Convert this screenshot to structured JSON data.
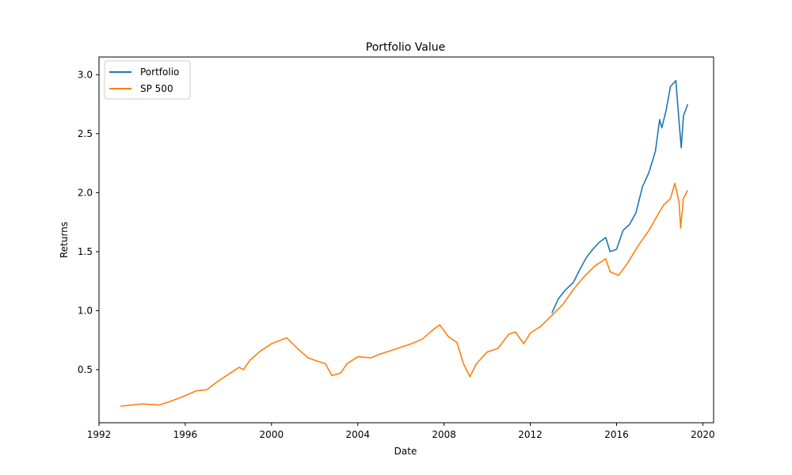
{
  "chart_data": {
    "type": "line",
    "title": "Portfolio Value",
    "xlabel": "Date",
    "ylabel": "Returns",
    "xlim": [
      1992.0,
      2020.5
    ],
    "ylim": [
      0.05,
      3.15
    ],
    "xticks": [
      1992,
      1996,
      2000,
      2004,
      2008,
      2012,
      2016,
      2020
    ],
    "xtick_labels": [
      "1992",
      "1996",
      "2000",
      "2004",
      "2008",
      "2012",
      "2016",
      "2020"
    ],
    "yticks": [
      0.5,
      1.0,
      1.5,
      2.0,
      2.5,
      3.0
    ],
    "ytick_labels": [
      "0.5",
      "1.0",
      "1.5",
      "2.0",
      "2.5",
      "3.0"
    ],
    "grid": false,
    "legend_position": "top-left",
    "series": [
      {
        "name": "Portfolio",
        "color": "#1f77b4",
        "x": [
          2013.0,
          2013.3,
          2013.6,
          2014.0,
          2014.3,
          2014.6,
          2014.9,
          2015.2,
          2015.5,
          2015.7,
          2016.0,
          2016.3,
          2016.6,
          2016.9,
          2017.2,
          2017.5,
          2017.8,
          2018.0,
          2018.1,
          2018.3,
          2018.5,
          2018.75,
          2018.9,
          2019.0,
          2019.1,
          2019.3
        ],
        "y": [
          0.98,
          1.1,
          1.17,
          1.24,
          1.35,
          1.45,
          1.52,
          1.58,
          1.62,
          1.5,
          1.52,
          1.68,
          1.73,
          1.83,
          2.05,
          2.17,
          2.35,
          2.62,
          2.55,
          2.7,
          2.9,
          2.95,
          2.6,
          2.38,
          2.65,
          2.75
        ]
      },
      {
        "name": "SP 500",
        "color": "#ff7f0e",
        "x": [
          1993.0,
          1994.0,
          1994.8,
          1995.3,
          1996.0,
          1996.5,
          1997.0,
          1997.5,
          1998.0,
          1998.5,
          1998.7,
          1999.0,
          1999.5,
          2000.0,
          2000.7,
          2001.2,
          2001.7,
          2002.0,
          2002.5,
          2002.8,
          2003.2,
          2003.5,
          2004.0,
          2004.6,
          2005.0,
          2005.5,
          2006.0,
          2006.5,
          2007.0,
          2007.5,
          2007.8,
          2008.2,
          2008.6,
          2008.9,
          2009.2,
          2009.5,
          2010.0,
          2010.5,
          2011.0,
          2011.3,
          2011.7,
          2012.0,
          2012.5,
          2013.0,
          2013.5,
          2014.0,
          2014.5,
          2015.0,
          2015.5,
          2015.7,
          2016.1,
          2016.5,
          2017.0,
          2017.5,
          2018.0,
          2018.2,
          2018.5,
          2018.7,
          2018.9,
          2018.97,
          2019.1,
          2019.3
        ],
        "y": [
          0.19,
          0.21,
          0.2,
          0.23,
          0.28,
          0.32,
          0.33,
          0.4,
          0.46,
          0.52,
          0.5,
          0.58,
          0.66,
          0.72,
          0.77,
          0.68,
          0.6,
          0.58,
          0.55,
          0.45,
          0.47,
          0.55,
          0.61,
          0.6,
          0.63,
          0.66,
          0.69,
          0.72,
          0.76,
          0.84,
          0.88,
          0.78,
          0.73,
          0.55,
          0.44,
          0.55,
          0.65,
          0.68,
          0.8,
          0.82,
          0.72,
          0.81,
          0.87,
          0.96,
          1.05,
          1.18,
          1.29,
          1.38,
          1.44,
          1.33,
          1.3,
          1.4,
          1.55,
          1.68,
          1.84,
          1.9,
          1.95,
          2.08,
          1.92,
          1.7,
          1.95,
          2.02
        ]
      }
    ]
  }
}
